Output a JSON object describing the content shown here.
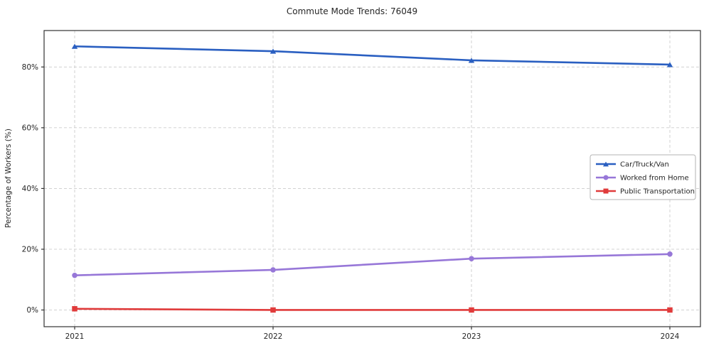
{
  "chart_data": {
    "type": "line",
    "title": "Commute Mode Trends: 76049",
    "xlabel": "",
    "ylabel": "Percentage of Workers (%)",
    "x": [
      2021,
      2022,
      2023,
      2024
    ],
    "x_tick_labels": [
      "2021",
      "2022",
      "2023",
      "2024"
    ],
    "y_ticks": [
      0,
      20,
      40,
      60,
      80
    ],
    "y_tick_labels": [
      "0%",
      "20%",
      "40%",
      "60%",
      "80%"
    ],
    "ylim": [
      -5.5,
      92
    ],
    "grid": true,
    "grid_style": "dashed",
    "legend_position": "center-right",
    "colors": {
      "grid": "#cccccc",
      "spine": "#333333",
      "legend_border": "#b3b3b3"
    },
    "series": [
      {
        "name": "Car/Truck/Van",
        "color": "#2a5fc1",
        "marker": "triangle",
        "values": [
          86.8,
          85.2,
          82.2,
          80.8
        ]
      },
      {
        "name": "Worked from Home",
        "color": "#9777d8",
        "marker": "circle",
        "values": [
          11.4,
          13.2,
          16.9,
          18.4
        ]
      },
      {
        "name": "Public Transportation",
        "color": "#e03b3b",
        "marker": "square",
        "values": [
          0.4,
          0.0,
          0.0,
          0.0
        ]
      }
    ]
  }
}
